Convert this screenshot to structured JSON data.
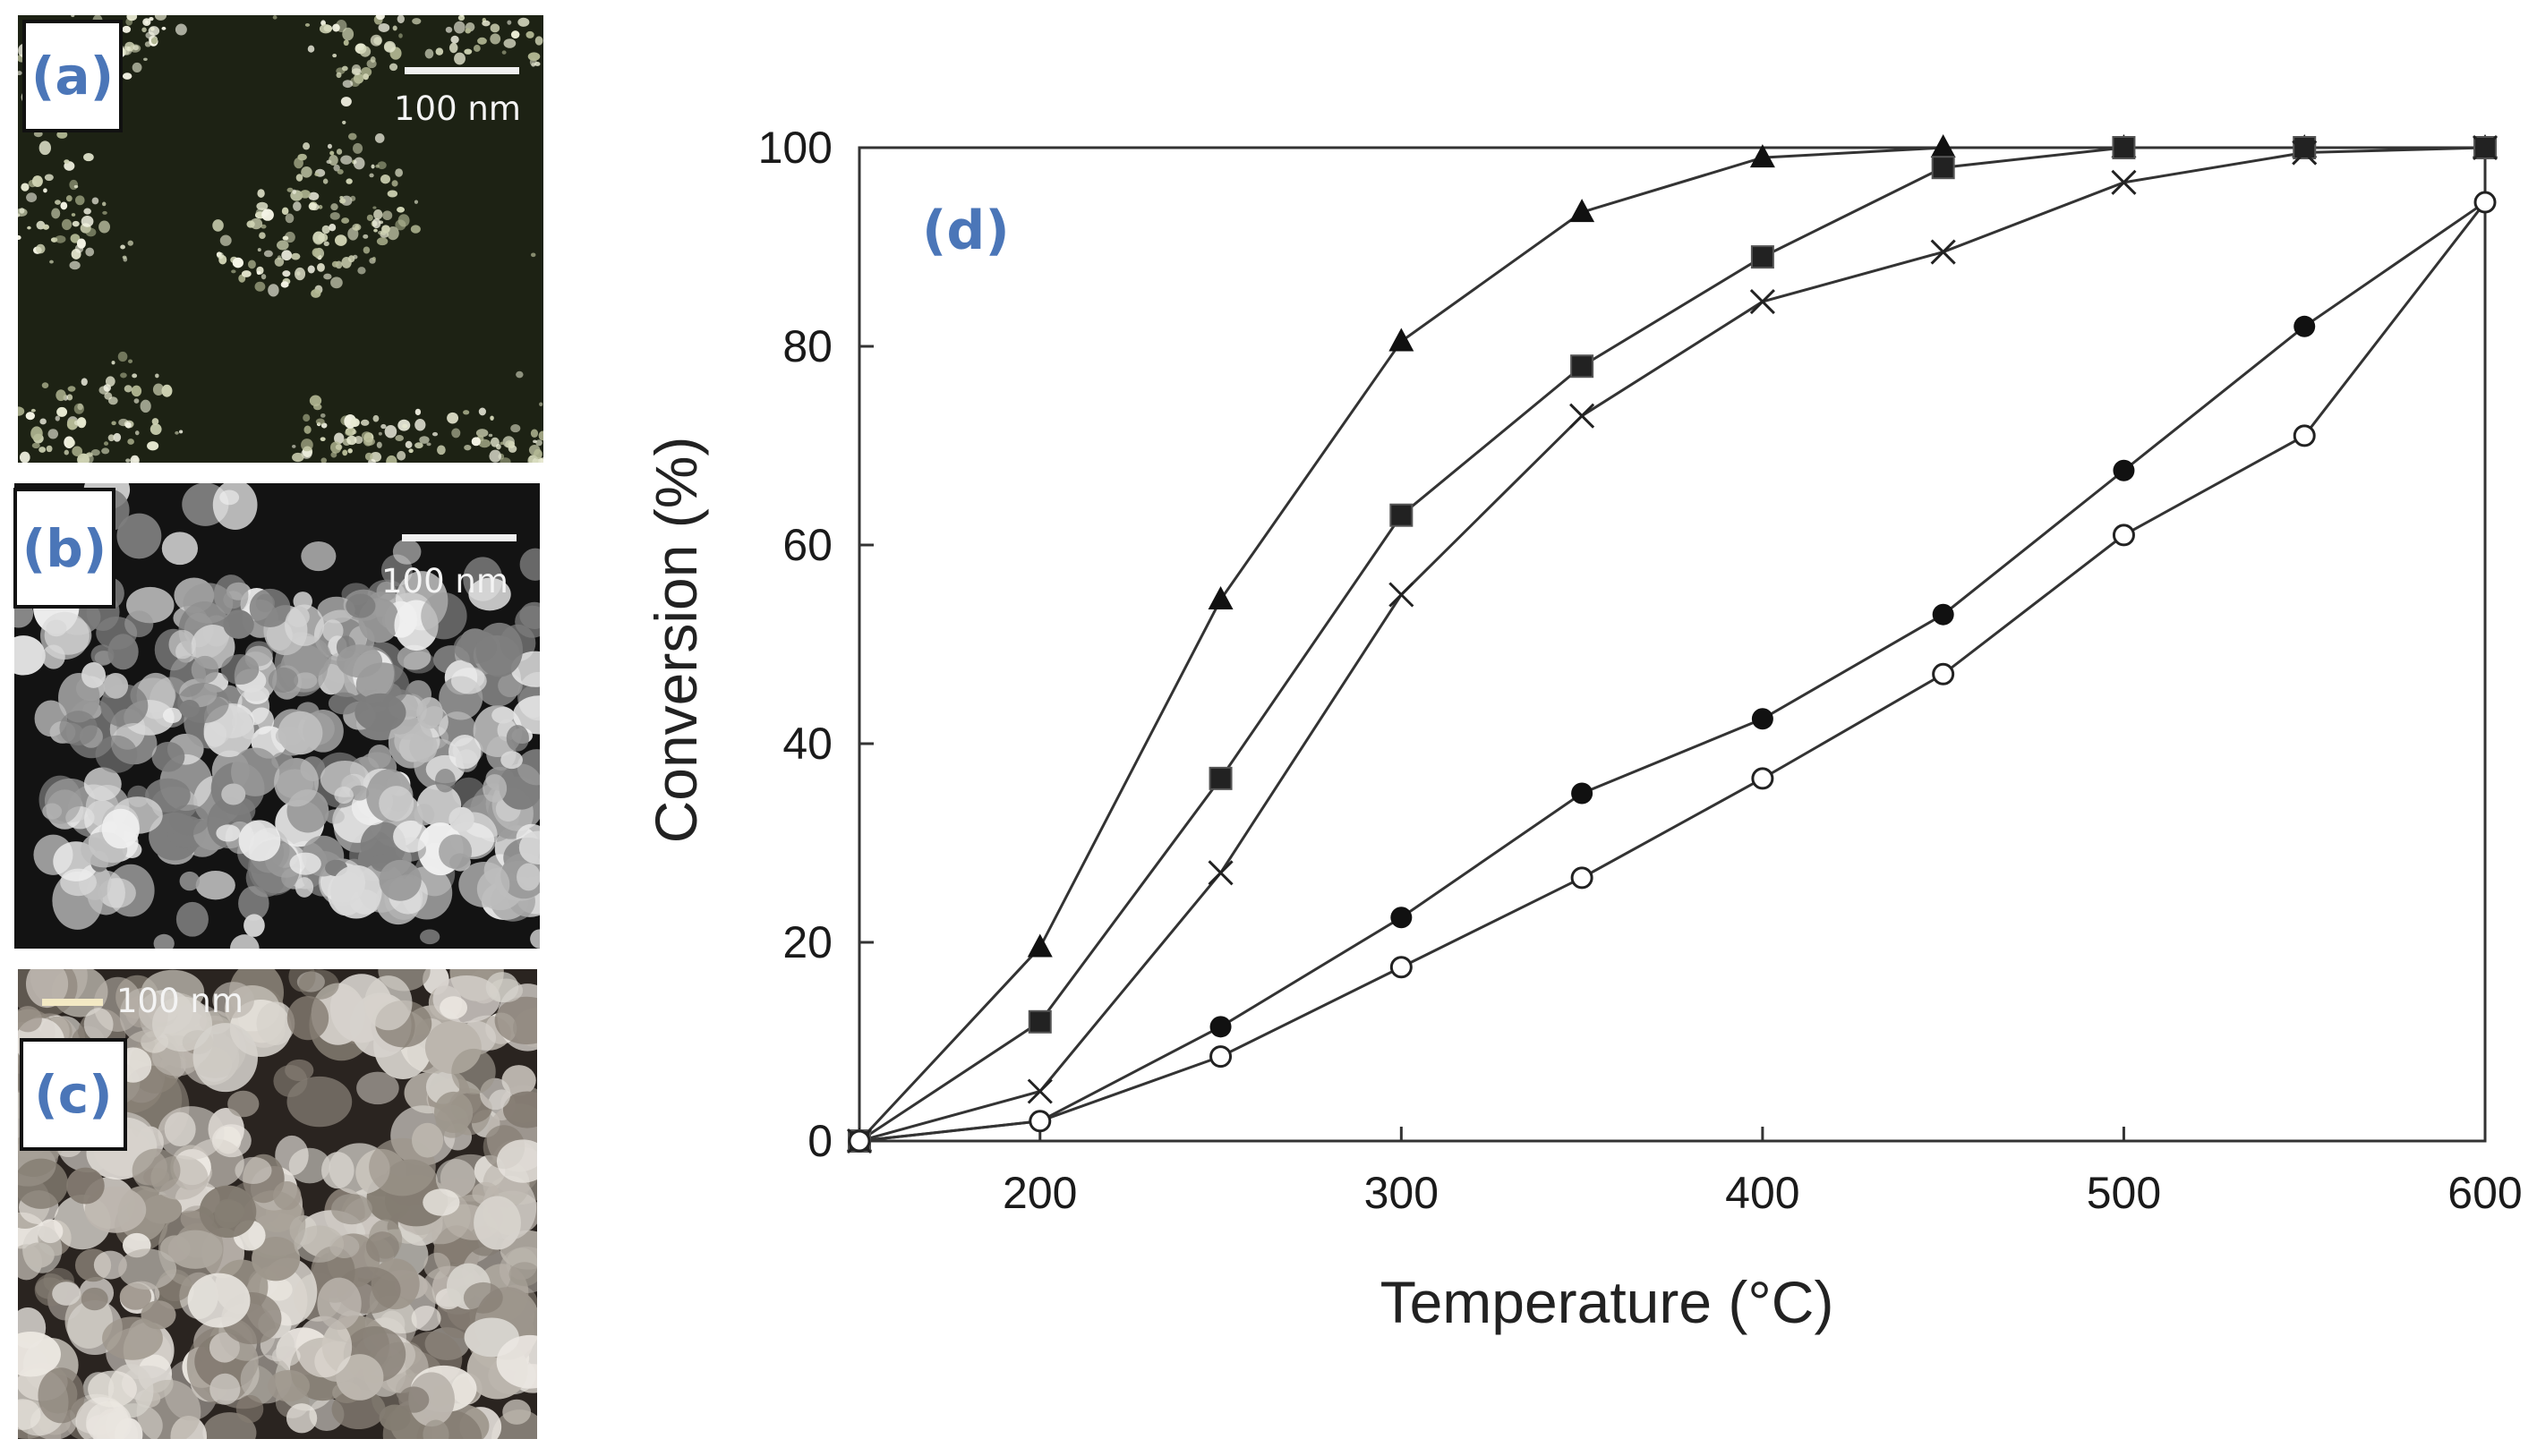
{
  "panels": {
    "a": {
      "label": "(a)",
      "scale_label": "100 nm"
    },
    "b": {
      "label": "(b)",
      "scale_label": "100 nm"
    },
    "c": {
      "label": "(c)",
      "scale_label": "100 nm"
    }
  },
  "chart_data": {
    "type": "line",
    "panel_label": "(d)",
    "xlabel": "Temperature (°C)",
    "ylabel": "Conversion (%)",
    "xlim": [
      150,
      600
    ],
    "ylim": [
      0,
      100
    ],
    "x_ticks": [
      200,
      300,
      400,
      500,
      600
    ],
    "y_ticks": [
      0,
      20,
      40,
      60,
      80,
      100
    ],
    "x": [
      150,
      200,
      250,
      300,
      350,
      400,
      450,
      500,
      550,
      600
    ],
    "series": [
      {
        "name": "filled-triangle",
        "marker": "triangle",
        "values": [
          0,
          19.5,
          54.5,
          80.5,
          93.5,
          99,
          100,
          100,
          100,
          100
        ]
      },
      {
        "name": "filled-square",
        "marker": "square",
        "values": [
          0,
          12,
          36.5,
          63,
          78,
          89,
          98,
          100,
          100,
          100
        ]
      },
      {
        "name": "cross",
        "marker": "cross",
        "values": [
          0,
          5,
          27,
          55,
          73,
          84.5,
          89.5,
          96.5,
          99.5,
          100
        ]
      },
      {
        "name": "filled-circle",
        "marker": "circle-filled",
        "values": [
          0,
          2,
          11.5,
          22.5,
          35,
          42.5,
          53,
          67.5,
          82,
          94.5
        ]
      },
      {
        "name": "open-circle",
        "marker": "circle-open",
        "values": [
          0,
          2,
          8.5,
          17.5,
          26.5,
          36.5,
          47,
          61,
          71,
          94.5
        ]
      }
    ]
  }
}
